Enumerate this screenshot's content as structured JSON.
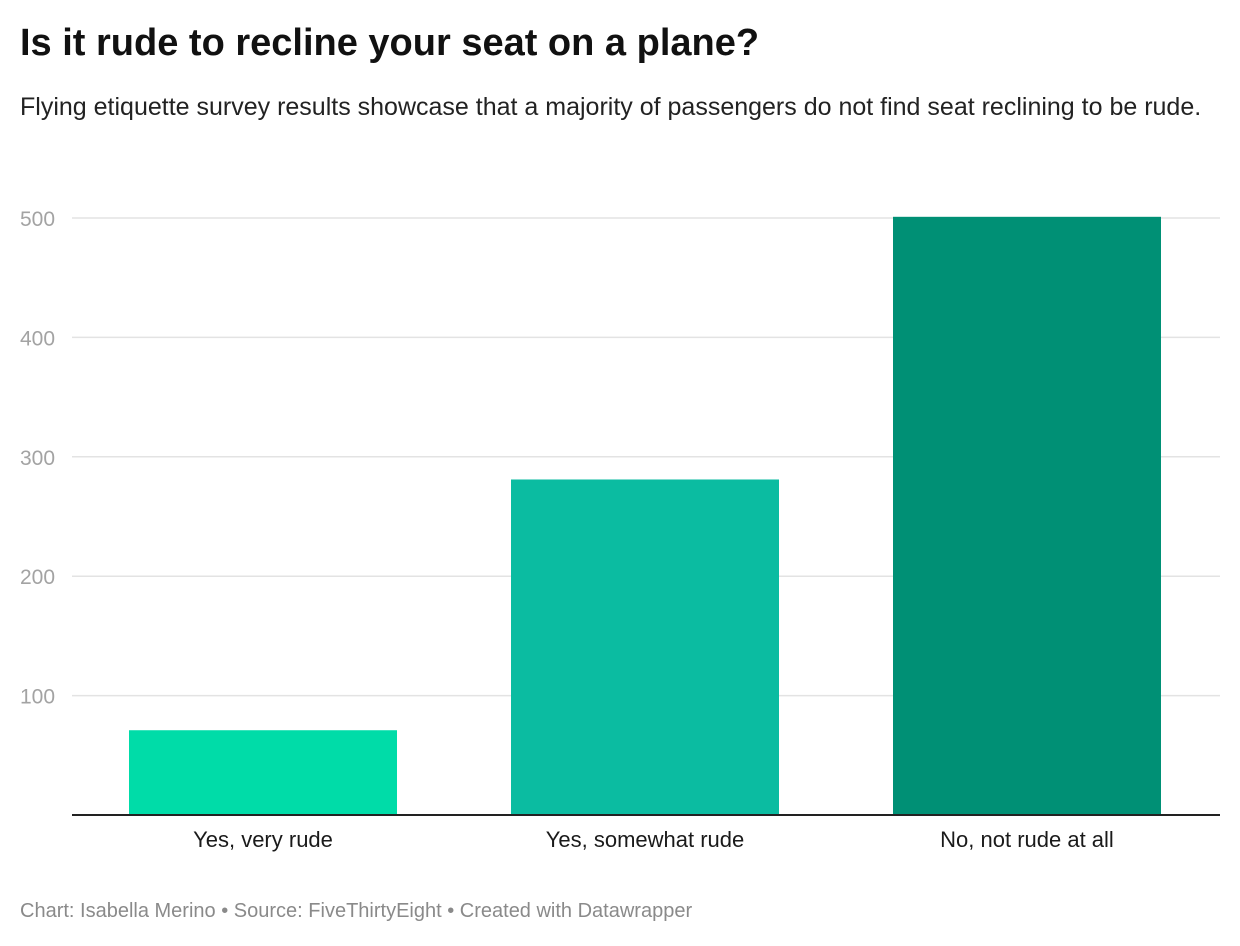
{
  "title": "Is it rude to recline your seat on a plane?",
  "subtitle": "Flying etiquette survey results showcase that a majority of passengers do not find seat reclining to be rude.",
  "footer": {
    "credit_label": "Chart:",
    "credit_name": "Isabella Merino",
    "source_label": "Source:",
    "source_name": "FiveThirtyEight",
    "tool_label": "Created with Datawrapper"
  },
  "chart_data": {
    "type": "bar",
    "categories": [
      "Yes, very rude",
      "Yes, somewhat rude",
      "No, not rude at all"
    ],
    "values": [
      71,
      281,
      501
    ],
    "colors": [
      "#00dca8",
      "#0bbca1",
      "#009075"
    ],
    "title": "Is it rude to recline your seat on a plane?",
    "subtitle": "Flying etiquette survey results showcase that a majority of passengers do not find seat reclining to be rude.",
    "xlabel": "",
    "ylabel": "",
    "yticks": [
      100,
      200,
      300,
      400,
      500
    ],
    "ylim": [
      0,
      500
    ],
    "grid": true,
    "legend": "none"
  }
}
